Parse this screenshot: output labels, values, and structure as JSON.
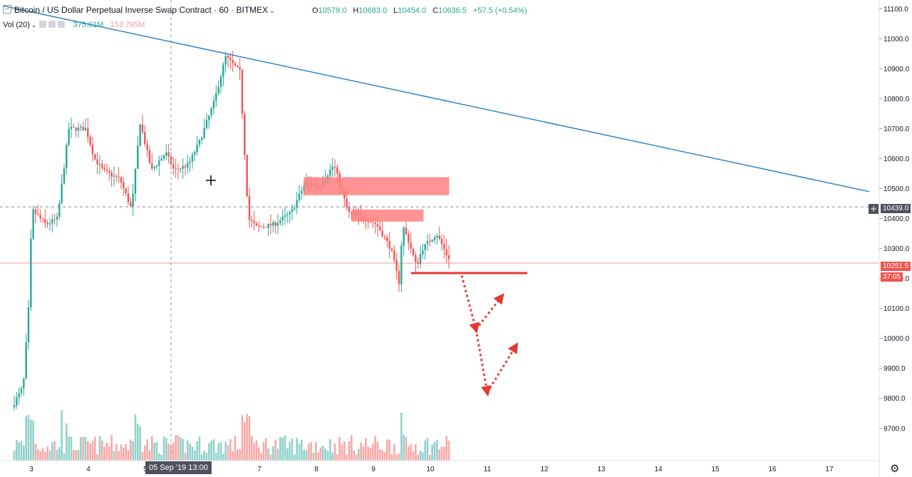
{
  "legend": {
    "symbol": "Bitcoin / US Dollar Perpetual Inverse Swap Contract",
    "interval": "60",
    "exchange": "BITMEX",
    "open_label": "O",
    "open": "10579.0",
    "high_label": "H",
    "high": "10683.0",
    "low_label": "L",
    "low": "10454.0",
    "close_label": "C",
    "close": "10636.5",
    "change": "+57.5 (+0.54%)"
  },
  "volume_legend": {
    "label": "Vol (20)",
    "value1": "375.01M",
    "value2": "153.795M"
  },
  "cursor": {
    "time_label": "05 Sep '19   13:00",
    "price_label": "10439.0"
  },
  "last_price": {
    "price": "10251.5",
    "countdown": "37:05"
  },
  "colors": {
    "up": "#26a69a",
    "down": "#ef5350",
    "trendline": "#2f86c8",
    "zone": "#ff7f7f",
    "annotation": "#e53935"
  },
  "chart_data": {
    "type": "candlestick",
    "price_axis_labels": [
      "11100.0",
      "11000.0",
      "10900.0",
      "10800.0",
      "10700.0",
      "10600.0",
      "10500.0",
      "10400.0",
      "10300.0",
      "10200.0",
      "10100.0",
      "10000.0",
      "9900.0",
      "9800.0",
      "9700.0"
    ],
    "time_axis_labels": [
      "3",
      "4",
      "5",
      "6",
      "7",
      "8",
      "9",
      "10",
      "11",
      "12",
      "13",
      "14",
      "15",
      "16",
      "17"
    ],
    "ylim": [
      9640,
      11115
    ],
    "path": [
      [
        2.7,
        9770
      ],
      [
        2.9,
        9840
      ],
      [
        3.0,
        10120
      ],
      [
        3.05,
        10430
      ],
      [
        3.3,
        10380
      ],
      [
        3.5,
        10400
      ],
      [
        3.7,
        10700
      ],
      [
        4.0,
        10700
      ],
      [
        4.15,
        10600
      ],
      [
        4.3,
        10560
      ],
      [
        4.6,
        10530
      ],
      [
        4.8,
        10430
      ],
      [
        4.95,
        10720
      ],
      [
        5.15,
        10560
      ],
      [
        5.4,
        10620
      ],
      [
        5.55,
        10560
      ],
      [
        5.8,
        10580
      ],
      [
        6.0,
        10660
      ],
      [
        6.25,
        10790
      ],
      [
        6.45,
        10940
      ],
      [
        6.7,
        10890
      ],
      [
        6.85,
        10400
      ],
      [
        7.0,
        10370
      ],
      [
        7.3,
        10380
      ],
      [
        7.6,
        10420
      ],
      [
        7.85,
        10520
      ],
      [
        8.1,
        10510
      ],
      [
        8.35,
        10580
      ],
      [
        8.6,
        10420
      ],
      [
        8.9,
        10400
      ],
      [
        9.1,
        10380
      ],
      [
        9.35,
        10300
      ],
      [
        9.5,
        10180
      ],
      [
        9.55,
        10380
      ],
      [
        9.65,
        10330
      ],
      [
        9.8,
        10240
      ],
      [
        9.9,
        10300
      ],
      [
        10.15,
        10350
      ],
      [
        10.35,
        10270
      ]
    ],
    "trendline": [
      [
        2.5,
        11110
      ],
      [
        17.7,
        10490
      ]
    ],
    "zones": [
      {
        "x": [
          7.78,
          10.33
        ],
        "y": [
          10478,
          10538
        ]
      },
      {
        "x": [
          8.62,
          9.88
        ],
        "y": [
          10390,
          10430
        ]
      }
    ],
    "support_line": {
      "x": [
        9.66,
        11.7
      ],
      "y": 10218
    },
    "projection_arrows": [
      [
        [
          10.55,
          10210
        ],
        [
          10.8,
          10030
        ],
        [
          11.25,
          10140
        ]
      ],
      [
        [
          10.8,
          10030
        ],
        [
          11.0,
          9820
        ],
        [
          11.5,
          9975
        ]
      ]
    ]
  }
}
